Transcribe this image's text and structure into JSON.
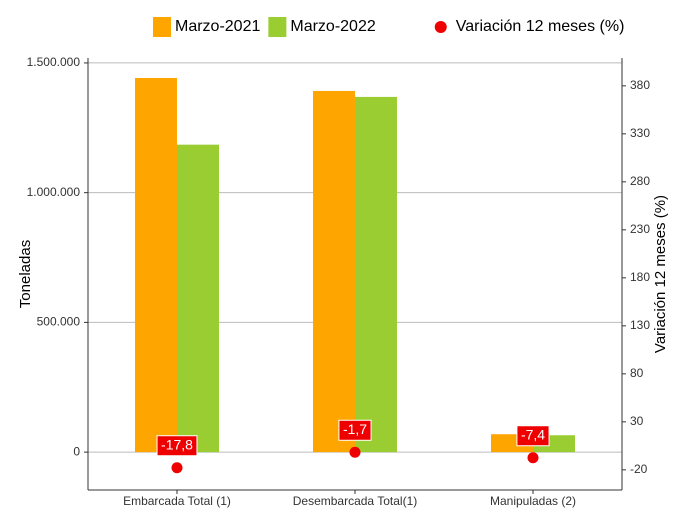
{
  "chart_data": {
    "type": "bar_dot",
    "categories": [
      "Embarcada Total (1)",
      "Desembarcada Total(1)",
      "Manipuladas (2)"
    ],
    "series": [
      {
        "name": "Marzo-2021",
        "color": "#ffa500",
        "values": [
          1442000,
          1392000,
          69000
        ]
      },
      {
        "name": "Marzo-2022",
        "color": "#9acd32",
        "values": [
          1185000,
          1369000,
          65000
        ]
      },
      {
        "name": "Variación 12 meses (%)",
        "color": "#ee0000",
        "axis": "y2",
        "values": [
          -17.8,
          -1.7,
          -7.4
        ],
        "value_labels": [
          "-17,8",
          "-1,7",
          "-7,4"
        ]
      }
    ],
    "ylabel": "Toneladas",
    "y2label": "Variación 12 meses (%)",
    "ylim": [
      -146000,
      1519000
    ],
    "yticks": [
      0,
      {
        "value": 500000,
        "label": "500.000"
      },
      {
        "value": 1000000,
        "label": "1.000.000"
      },
      {
        "value": 1500000,
        "label": "1.500.000"
      }
    ],
    "y2lim": [
      -41,
      409
    ],
    "y2ticks": [
      -20,
      30,
      80,
      130,
      180,
      230,
      280,
      330,
      380
    ],
    "grid": true
  }
}
